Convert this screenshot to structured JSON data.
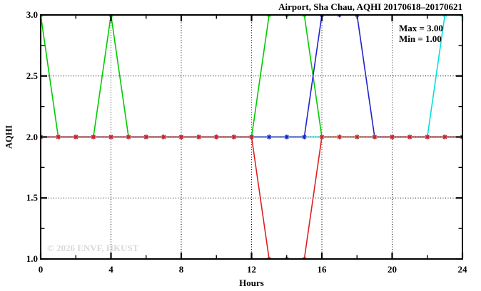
{
  "chart_data": {
    "type": "line",
    "title": "Airport, Sha Chau, AQHI 20170618–20170621",
    "xlabel": "Hours",
    "ylabel": "AQHI",
    "legend_lines": {
      "max": "Max = 3.00",
      "min": "Min = 1.00"
    },
    "legend_position": "top-right",
    "watermark": "© 2026 ENVF, HKUST",
    "grid": true,
    "xlim": [
      0,
      24
    ],
    "ylim": [
      1.0,
      3.0
    ],
    "x_major_ticks": [
      0,
      4,
      8,
      12,
      16,
      20,
      24
    ],
    "x_minor_ticks": [
      2,
      6,
      10,
      14,
      18,
      22
    ],
    "y_major_ticks": [
      1.0,
      1.5,
      2.0,
      2.5,
      3.0
    ],
    "y_tick_labels": [
      "1.0",
      "1.5",
      "2.0",
      "2.5",
      "3.0"
    ],
    "y_minor_ticks": [
      1.25,
      1.75,
      2.25,
      2.75
    ],
    "max_value": 3.0,
    "min_value": 1.0,
    "x": [
      0,
      1,
      2,
      3,
      4,
      5,
      6,
      7,
      8,
      9,
      10,
      11,
      12,
      13,
      14,
      15,
      16,
      17,
      18,
      19,
      20,
      21,
      22,
      23,
      24
    ],
    "series": [
      {
        "name": "series-green",
        "color": "#00cc00",
        "values": [
          3,
          2,
          2,
          2,
          3,
          2,
          2,
          2,
          2,
          2,
          2,
          2,
          2,
          3,
          3,
          3,
          2,
          2,
          2,
          2,
          2,
          2,
          2,
          2,
          2
        ]
      },
      {
        "name": "series-cyan",
        "color": "#00e0e0",
        "values": [
          2,
          2,
          2,
          2,
          2,
          2,
          2,
          2,
          2,
          2,
          2,
          2,
          2,
          2,
          2,
          2,
          2,
          2,
          2,
          2,
          2,
          2,
          2,
          3,
          3
        ]
      },
      {
        "name": "series-blue",
        "color": "#2222cc",
        "values": [
          2,
          2,
          2,
          2,
          2,
          2,
          2,
          2,
          2,
          2,
          2,
          2,
          2,
          2,
          2,
          2,
          3,
          3,
          3,
          2,
          2,
          2,
          2,
          2,
          2
        ]
      },
      {
        "name": "series-red",
        "color": "#e02020",
        "values": [
          2,
          2,
          2,
          2,
          2,
          2,
          2,
          2,
          2,
          2,
          2,
          2,
          2,
          1,
          1,
          1,
          2,
          2,
          2,
          2,
          2,
          2,
          2,
          2,
          2
        ]
      }
    ],
    "axis_color": "#000000",
    "background_color": "#ffffff"
  }
}
